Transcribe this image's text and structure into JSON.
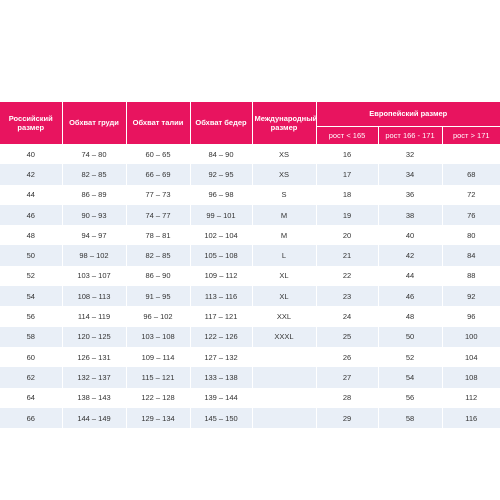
{
  "colors": {
    "header_bg": "#e8145f",
    "header_text": "#ffffff",
    "stripe": "#e9eff7"
  },
  "table": {
    "headers": {
      "russian_size": "Российский размер",
      "chest": "Обхват груди",
      "waist": "Обхват талии",
      "hips": "Обхват бедер",
      "international": "Международный размер",
      "european": "Европейский размер",
      "height_lt_165": "рост < 165",
      "height_166_171": "рост 166 - 171",
      "height_gt_171": "рост > 171"
    },
    "rows": [
      {
        "ru": "40",
        "chest": "74 – 80",
        "waist": "60 – 65",
        "hips": "84 – 90",
        "intl": "XS",
        "eu_165": "16",
        "eu_171": "32",
        "eu_171plus": ""
      },
      {
        "ru": "42",
        "chest": "82 – 85",
        "waist": "66 – 69",
        "hips": "92 – 95",
        "intl": "XS",
        "eu_165": "17",
        "eu_171": "34",
        "eu_171plus": "68"
      },
      {
        "ru": "44",
        "chest": "86 – 89",
        "waist": "77 – 73",
        "hips": "96 – 98",
        "intl": "S",
        "eu_165": "18",
        "eu_171": "36",
        "eu_171plus": "72"
      },
      {
        "ru": "46",
        "chest": "90 – 93",
        "waist": "74 – 77",
        "hips": "99 – 101",
        "intl": "M",
        "eu_165": "19",
        "eu_171": "38",
        "eu_171plus": "76"
      },
      {
        "ru": "48",
        "chest": "94 – 97",
        "waist": "78 – 81",
        "hips": "102 – 104",
        "intl": "M",
        "eu_165": "20",
        "eu_171": "40",
        "eu_171plus": "80"
      },
      {
        "ru": "50",
        "chest": "98 – 102",
        "waist": "82 – 85",
        "hips": "105 – 108",
        "intl": "L",
        "eu_165": "21",
        "eu_171": "42",
        "eu_171plus": "84"
      },
      {
        "ru": "52",
        "chest": "103 – 107",
        "waist": "86 – 90",
        "hips": "109 – 112",
        "intl": "XL",
        "eu_165": "22",
        "eu_171": "44",
        "eu_171plus": "88"
      },
      {
        "ru": "54",
        "chest": "108 – 113",
        "waist": "91 – 95",
        "hips": "113 – 116",
        "intl": "XL",
        "eu_165": "23",
        "eu_171": "46",
        "eu_171plus": "92"
      },
      {
        "ru": "56",
        "chest": "114 – 119",
        "waist": "96 – 102",
        "hips": "117 – 121",
        "intl": "XXL",
        "eu_165": "24",
        "eu_171": "48",
        "eu_171plus": "96"
      },
      {
        "ru": "58",
        "chest": "120 – 125",
        "waist": "103 – 108",
        "hips": "122 – 126",
        "intl": "XXXL",
        "eu_165": "25",
        "eu_171": "50",
        "eu_171plus": "100"
      },
      {
        "ru": "60",
        "chest": "126 – 131",
        "waist": "109 – 114",
        "hips": "127 – 132",
        "intl": "",
        "eu_165": "26",
        "eu_171": "52",
        "eu_171plus": "104"
      },
      {
        "ru": "62",
        "chest": "132 – 137",
        "waist": "115 – 121",
        "hips": "133 – 138",
        "intl": "",
        "eu_165": "27",
        "eu_171": "54",
        "eu_171plus": "108"
      },
      {
        "ru": "64",
        "chest": "138 – 143",
        "waist": "122 – 128",
        "hips": "139 – 144",
        "intl": "",
        "eu_165": "28",
        "eu_171": "56",
        "eu_171plus": "112"
      },
      {
        "ru": "66",
        "chest": "144 – 149",
        "waist": "129 – 134",
        "hips": "145 – 150",
        "intl": "",
        "eu_165": "29",
        "eu_171": "58",
        "eu_171plus": "116"
      }
    ]
  }
}
